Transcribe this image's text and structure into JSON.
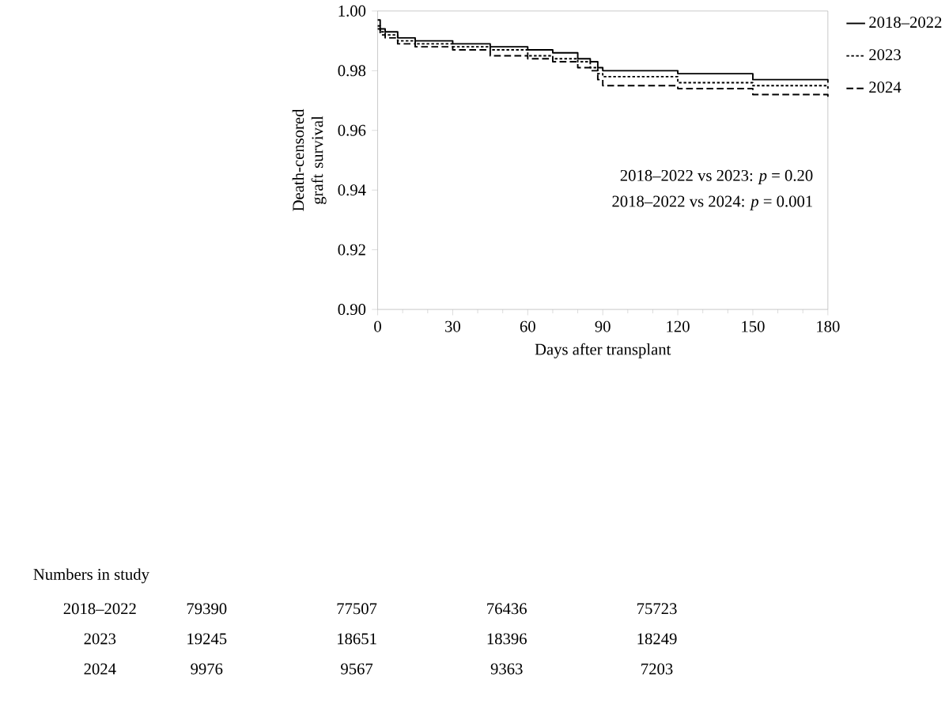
{
  "chart_data": {
    "type": "step",
    "xlabel": "Days after transplant",
    "ylabel": "Death-censored graft survival",
    "xlim": [
      0,
      180
    ],
    "xticks": [
      0,
      30,
      60,
      90,
      120,
      150,
      180
    ],
    "ylim": [
      0.9,
      1.0
    ],
    "yticks": [
      {
        "value": 0.9,
        "label": "0.90"
      },
      {
        "value": 0.92,
        "label": "0.92"
      },
      {
        "value": 0.94,
        "label": "0.94"
      },
      {
        "value": 0.96,
        "label": "0.96"
      },
      {
        "value": 0.98,
        "label": "0.98"
      },
      {
        "value": 1.0,
        "label": "1.00"
      }
    ],
    "legend": "right",
    "grid": false,
    "series": [
      {
        "name": "2018–2022",
        "color": "#000000",
        "line_style": "solid",
        "x": [
          0,
          1,
          3,
          8,
          15,
          30,
          45,
          60,
          70,
          80,
          85,
          88,
          90,
          120,
          150,
          180
        ],
        "values": [
          0.997,
          0.994,
          0.993,
          0.991,
          0.99,
          0.989,
          0.988,
          0.987,
          0.986,
          0.984,
          0.983,
          0.981,
          0.98,
          0.979,
          0.977,
          0.976
        ]
      },
      {
        "name": "2023",
        "color": "#000000",
        "line_style": "dotted",
        "x": [
          0,
          1,
          3,
          8,
          15,
          30,
          45,
          60,
          70,
          80,
          85,
          88,
          90,
          120,
          150,
          180
        ],
        "values": [
          0.995,
          0.993,
          0.992,
          0.99,
          0.989,
          0.988,
          0.987,
          0.985,
          0.984,
          0.983,
          0.981,
          0.979,
          0.978,
          0.976,
          0.975,
          0.974
        ]
      },
      {
        "name": "2024",
        "color": "#000000",
        "line_style": "dashed",
        "x": [
          0,
          1,
          3,
          8,
          15,
          30,
          45,
          60,
          70,
          80,
          85,
          88,
          90,
          120,
          150,
          180
        ],
        "values": [
          0.994,
          0.992,
          0.991,
          0.989,
          0.988,
          0.987,
          0.985,
          0.984,
          0.983,
          0.981,
          0.98,
          0.977,
          0.975,
          0.974,
          0.972,
          0.971
        ]
      }
    ],
    "annotations": [
      "2018–2022 vs 2023: *p* = 0.20",
      "2018–2022 vs 2024: *p* = 0.001",
      "Numbers in study",
      "2018–2022",
      "79390",
      "77507",
      "76436",
      "75723",
      "2023",
      "19245",
      "18651",
      "18396",
      "18249",
      "2024",
      "9976",
      "9567",
      "9363",
      "7203"
    ]
  }
}
